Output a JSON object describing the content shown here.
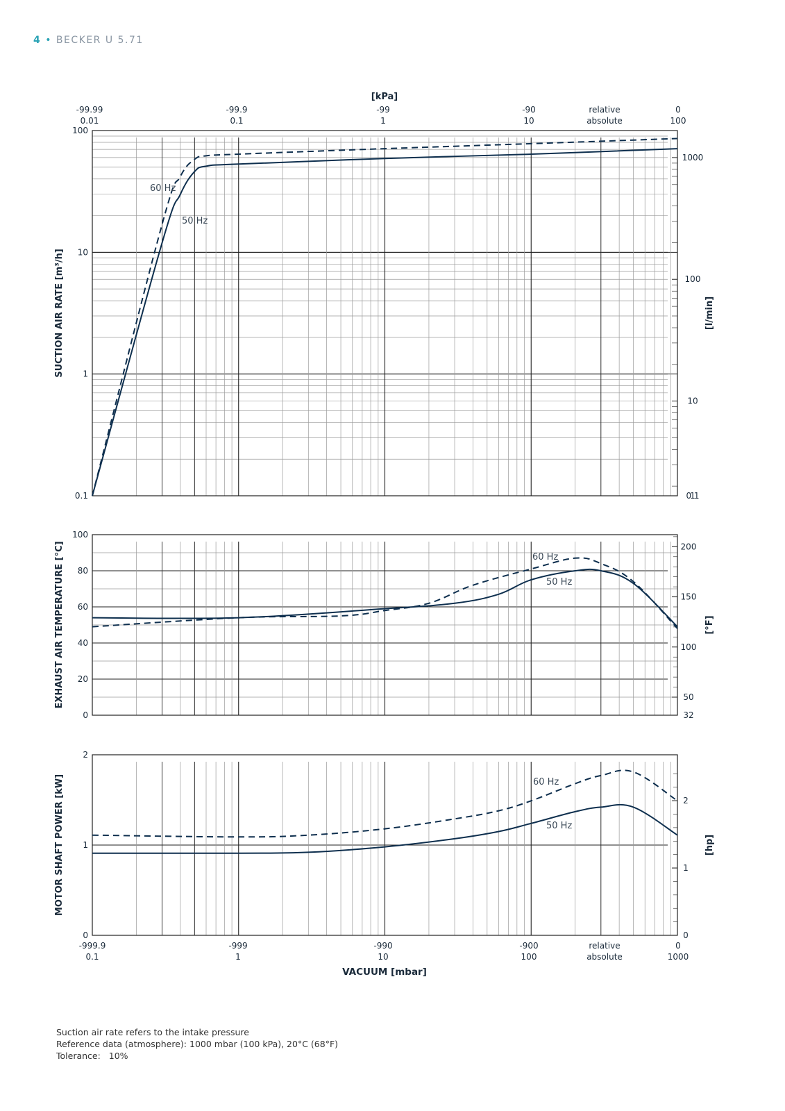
{
  "header": {
    "page_number": "4",
    "separator": "•",
    "product": "BECKER U 5.71"
  },
  "colors": {
    "curve": "#0e2f4e",
    "grid_major": "#222222",
    "grid_minor": "#9a9a9a",
    "accent": "#2aa3b5"
  },
  "chart_data": [
    {
      "type": "line",
      "id": "suction",
      "ylabel": "SUCTION AIR RATE",
      "ylabel_unit": "[m³/h]",
      "yscale": "log",
      "ylim": [
        0.1,
        100
      ],
      "yticks": [
        "100",
        "10",
        "1",
        "0.1"
      ],
      "right_axis_label": "[l/min]",
      "right_ticks": [
        "1000",
        "100",
        "10",
        "1",
        "0.1"
      ],
      "xscale": "log",
      "xlim_absolute_mbar": [
        0.1,
        1000
      ],
      "top_axis_title": "[kPa]",
      "top_ticks": [
        {
          "relative": "-99.99",
          "absolute": "0.01"
        },
        {
          "relative": "-99.9",
          "absolute": "0.1"
        },
        {
          "relative": "-99",
          "absolute": "1"
        },
        {
          "relative": "-90",
          "absolute": "10"
        },
        {
          "relative": "relative",
          "absolute": "absolute"
        },
        {
          "relative": "0",
          "absolute": "100"
        }
      ],
      "series": [
        {
          "name": "50 Hz",
          "dash": false,
          "x": [
            0.1,
            0.3,
            0.4,
            0.5,
            0.6,
            1,
            10,
            100,
            1000
          ],
          "y": [
            0.1,
            12,
            30,
            46,
            51,
            53,
            59,
            64,
            71
          ]
        },
        {
          "name": "60 Hz",
          "dash": true,
          "x": [
            0.1,
            0.3,
            0.4,
            0.5,
            0.6,
            1,
            10,
            100,
            1000
          ],
          "y": [
            0.1,
            17,
            42,
            58,
            62,
            64,
            71,
            78,
            86
          ]
        }
      ]
    },
    {
      "type": "line",
      "id": "temperature",
      "ylabel": "EXHAUST AIR TEMPERATURE",
      "ylabel_unit": "[°C]",
      "ylim": [
        0,
        100
      ],
      "yticks": [
        "100",
        "80",
        "60",
        "40",
        "20",
        "0"
      ],
      "right_axis_label": "[°F]",
      "right_ticks": [
        "200",
        "150",
        "100",
        "50",
        "32"
      ],
      "xscale": "log",
      "xlim_absolute_mbar": [
        0.1,
        1000
      ],
      "series": [
        {
          "name": "50 Hz",
          "dash": false,
          "x": [
            0.1,
            1,
            10,
            30,
            60,
            100,
            200,
            300,
            500,
            1000
          ],
          "y": [
            54,
            54,
            59,
            62,
            67,
            75,
            80,
            80,
            73,
            49
          ]
        },
        {
          "name": "60 Hz",
          "dash": true,
          "x": [
            0.1,
            1,
            5,
            10,
            20,
            40,
            100,
            200,
            300,
            500,
            1000
          ],
          "y": [
            49,
            54,
            55,
            58,
            62,
            72,
            81,
            87,
            84,
            74,
            48
          ]
        }
      ]
    },
    {
      "type": "line",
      "id": "power",
      "ylabel": "MOTOR SHAFT POWER",
      "ylabel_unit": "[kW]",
      "ylim": [
        0,
        2
      ],
      "yticks": [
        "2",
        "1",
        "0"
      ],
      "right_axis_label": "[hp]",
      "right_ticks": [
        "2",
        "1",
        "0"
      ],
      "xscale": "log",
      "xlim_absolute_mbar": [
        0.1,
        1000
      ],
      "xlabel": "VACUUM",
      "xlabel_unit": "[mbar]",
      "bottom_ticks": [
        {
          "relative": "-999.9",
          "absolute": "0.1"
        },
        {
          "relative": "-999",
          "absolute": "1"
        },
        {
          "relative": "-990",
          "absolute": "10"
        },
        {
          "relative": "-900",
          "absolute": "100"
        },
        {
          "relative": "relative",
          "absolute": "absolute"
        },
        {
          "relative": "0",
          "absolute": "1000"
        }
      ],
      "series": [
        {
          "name": "50 Hz",
          "dash": false,
          "x": [
            0.1,
            1,
            3,
            10,
            30,
            60,
            100,
            200,
            300,
            500,
            1000
          ],
          "y": [
            0.91,
            0.91,
            0.92,
            0.98,
            1.07,
            1.15,
            1.24,
            1.37,
            1.42,
            1.42,
            1.11
          ]
        },
        {
          "name": "60 Hz",
          "dash": true,
          "x": [
            0.1,
            1,
            3,
            10,
            30,
            60,
            100,
            200,
            300,
            500,
            1000
          ],
          "y": [
            1.11,
            1.09,
            1.11,
            1.18,
            1.29,
            1.38,
            1.49,
            1.68,
            1.77,
            1.81,
            1.49
          ]
        }
      ]
    }
  ],
  "footnotes": [
    "Suction air rate refers to the intake pressure",
    "Reference data (atmosphere): 1000 mbar (100 kPa), 20°C (68°F)",
    "Tolerance:   10%"
  ]
}
